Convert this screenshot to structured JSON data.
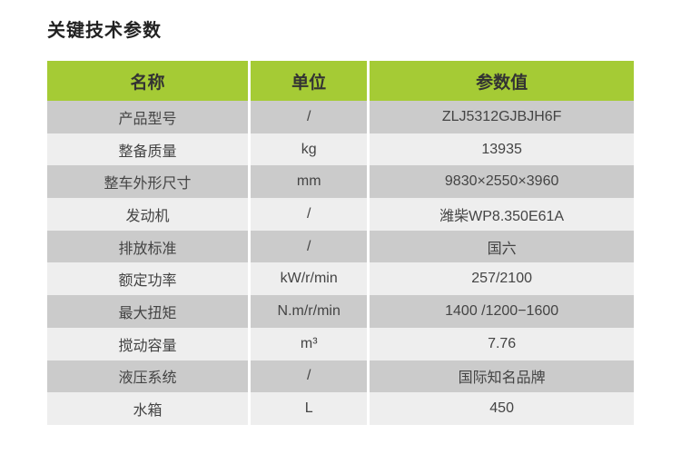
{
  "title": "关键技术参数",
  "headers": [
    "名称",
    "单位",
    "参数值"
  ],
  "colors": {
    "header": "#a5cb35",
    "row_dark": "#cbcbcb",
    "row_light": "#eeeeee"
  },
  "rows": [
    {
      "name": "产品型号",
      "unit": "/",
      "value": "ZLJ5312GJBJH6F"
    },
    {
      "name": "整备质量",
      "unit": "kg",
      "value": "13935"
    },
    {
      "name": "整车外形尺寸",
      "unit": "mm",
      "value": "9830×2550×3960"
    },
    {
      "name": "发动机",
      "unit": "/",
      "value": "潍柴WP8.350E61A"
    },
    {
      "name": "排放标准",
      "unit": "/",
      "value": "国六"
    },
    {
      "name": "额定功率",
      "unit": "kW/r/min",
      "value": "257/2100"
    },
    {
      "name": "最大扭矩",
      "unit": "N.m/r/min",
      "value": "1400 /1200−1600"
    },
    {
      "name": "搅动容量",
      "unit": "m³",
      "value": "7.76"
    },
    {
      "name": "液压系统",
      "unit": "/",
      "value": "国际知名品牌"
    },
    {
      "name": "水箱",
      "unit": "L",
      "value": "450"
    }
  ]
}
